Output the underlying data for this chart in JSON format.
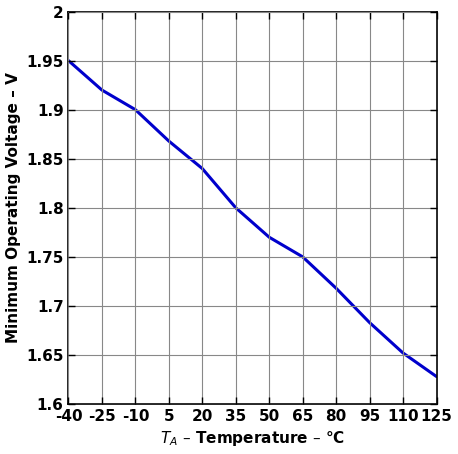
{
  "x_data": [
    -40,
    -25,
    -10,
    5,
    20,
    35,
    50,
    65,
    80,
    95,
    110,
    125
  ],
  "y_data": [
    1.95,
    1.92,
    1.9,
    1.868,
    1.84,
    1.8,
    1.77,
    1.75,
    1.718,
    1.683,
    1.652,
    1.628
  ],
  "line_color": "#0000cc",
  "line_width": 2.2,
  "xlim": [
    -40,
    125
  ],
  "ylim": [
    1.6,
    2.0
  ],
  "xticks": [
    -40,
    -25,
    -10,
    5,
    20,
    35,
    50,
    65,
    80,
    95,
    110,
    125
  ],
  "ytick_values": [
    1.6,
    1.65,
    1.7,
    1.75,
    1.8,
    1.85,
    1.9,
    1.95,
    2.0
  ],
  "ytick_labels": [
    "1.6",
    "1.65",
    "1.7",
    "1.75",
    "1.8",
    "1.85",
    "1.9",
    "1.95",
    "2"
  ],
  "xlabel": "T_A – Temperature – °C",
  "ylabel": "Minimum Operating Voltage – V",
  "grid_color": "#888888",
  "bg_color": "#ffffff",
  "tick_fontsize": 11,
  "label_fontsize": 11,
  "font_weight": "bold"
}
